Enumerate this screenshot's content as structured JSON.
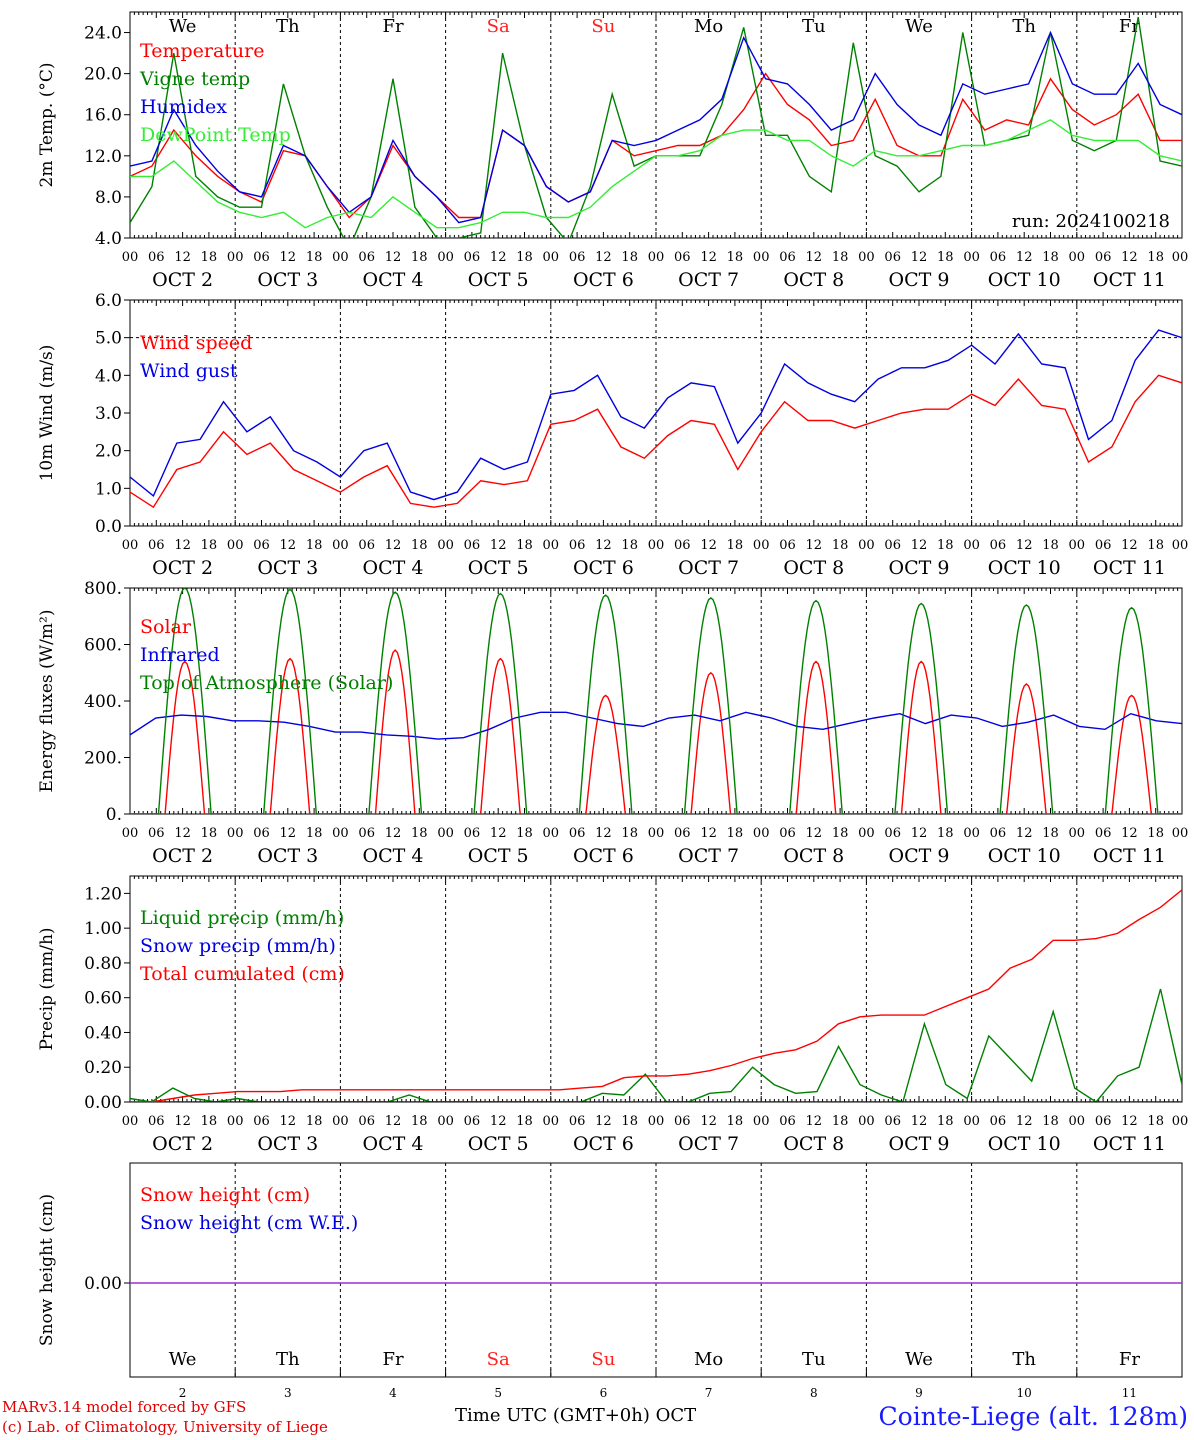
{
  "header": {
    "days": [
      "We",
      "Th",
      "Fr",
      "Sa",
      "Su",
      "Mo",
      "Tu",
      "We",
      "Th",
      "Fr"
    ],
    "weekend_days": [
      "Sa",
      "Su"
    ],
    "date_labels": [
      "OCT  2",
      "OCT  3",
      "OCT  4",
      "OCT  5",
      "OCT  6",
      "OCT  7",
      "OCT  8",
      "OCT  9",
      "OCT 10",
      "OCT 11"
    ],
    "hour_labels": [
      "00",
      "06",
      "12",
      "18"
    ],
    "final_hour_label": "00",
    "bottom_dates": [
      "2",
      "3",
      "4",
      "5",
      "6",
      "7",
      "8",
      "9",
      "10",
      "11"
    ],
    "weekend_color": "#ff2020"
  },
  "footer": {
    "model_line": "MARv3.14 model forced by GFS",
    "credit_line": "(c) Lab. of Climatology, University of Liege",
    "axis_title": "Time UTC (GMT+0h) OCT",
    "station": "Cointe-Liege (alt. 128m)"
  },
  "chart_data": [
    {
      "type": "line",
      "ylabel": "2m Temp. (°C)",
      "ylim": [
        4,
        26
      ],
      "yticks": [
        "4.0",
        "8.0",
        "12.0",
        "16.0",
        "20.0",
        "24.0"
      ],
      "run_label": "run: 2024100218",
      "x": "hours since Oct 2 00 UTC, step 6h (0..240)",
      "series": [
        {
          "name": "Temperature",
          "color": "#ff0000",
          "values": [
            10,
            11,
            14.5,
            12,
            10,
            8.5,
            7.5,
            12.5,
            12,
            9,
            6,
            8,
            13,
            10,
            8,
            6,
            6,
            14.5,
            13,
            9,
            7.5,
            8.5,
            13.5,
            12,
            12.5,
            13,
            13,
            14,
            16.5,
            20,
            17,
            15.5,
            13,
            13.5,
            17.5,
            13,
            12,
            12,
            17.5,
            14.5,
            15.5,
            15,
            19.5,
            16.5,
            15,
            16,
            18,
            13.5,
            13.5
          ]
        },
        {
          "name": "Vigne temp",
          "color": "#008000",
          "values": [
            5.5,
            9,
            22,
            10,
            8,
            7,
            7,
            19,
            12,
            7,
            3,
            8,
            19.5,
            7,
            4,
            4,
            4.5,
            22,
            13,
            6,
            3.5,
            9,
            18,
            11,
            12,
            12,
            12,
            17,
            24.5,
            14,
            14,
            10,
            8.5,
            23,
            12,
            11,
            8.5,
            10,
            24,
            13,
            13.5,
            14,
            24,
            13.5,
            12.5,
            13.5,
            25.5,
            11.5,
            11
          ]
        },
        {
          "name": "Humidex",
          "color": "#0000e0",
          "values": [
            11,
            11.5,
            16.5,
            13,
            10.5,
            8.5,
            8,
            13,
            12,
            9,
            6.5,
            8,
            13.5,
            10,
            8,
            5.5,
            6,
            14.5,
            13,
            9,
            7.5,
            8.5,
            13.5,
            13,
            13.5,
            14.5,
            15.5,
            17.5,
            23.5,
            19.5,
            19,
            17,
            14.5,
            15.5,
            20,
            17,
            15,
            14,
            19,
            18,
            18.5,
            19,
            24,
            19,
            18,
            18,
            21,
            17,
            16
          ]
        },
        {
          "name": "DewPoint Temp",
          "color": "#33ee33",
          "values": [
            10,
            10,
            11.5,
            9.5,
            7.5,
            6.5,
            6,
            6.5,
            5,
            6,
            6.5,
            6,
            8,
            6.5,
            5,
            5,
            5.5,
            6.5,
            6.5,
            6,
            6,
            7,
            9,
            10.5,
            12,
            12,
            12.5,
            14,
            14.5,
            14.5,
            13.5,
            13.5,
            12,
            11,
            12.5,
            12,
            12,
            12.5,
            13,
            13,
            13.5,
            14.5,
            15.5,
            14,
            13.5,
            13.5,
            13.5,
            12,
            11.5
          ]
        }
      ]
    },
    {
      "type": "line",
      "ylabel": "10m Wind (m/s)",
      "ylim": [
        0,
        6
      ],
      "yticks": [
        "0.0",
        "1.0",
        "2.0",
        "3.0",
        "4.0",
        "5.0",
        "6.0"
      ],
      "reference_line": 5,
      "series": [
        {
          "name": "Wind speed",
          "color": "#ff0000",
          "values": [
            0.9,
            0.5,
            1.5,
            1.7,
            2.5,
            1.9,
            2.2,
            1.5,
            1.2,
            0.9,
            1.3,
            1.6,
            0.6,
            0.5,
            0.6,
            1.2,
            1.1,
            1.2,
            2.7,
            2.8,
            3.1,
            2.1,
            1.8,
            2.4,
            2.8,
            2.7,
            1.5,
            2.5,
            3.3,
            2.8,
            2.8,
            2.6,
            2.8,
            3.0,
            3.1,
            3.1,
            3.5,
            3.2,
            3.9,
            3.2,
            3.1,
            1.7,
            2.1,
            3.3,
            4.0,
            3.8
          ]
        },
        {
          "name": "Wind gust",
          "color": "#0000e0",
          "values": [
            1.3,
            0.8,
            2.2,
            2.3,
            3.3,
            2.5,
            2.9,
            2.0,
            1.7,
            1.3,
            2.0,
            2.2,
            0.9,
            0.7,
            0.9,
            1.8,
            1.5,
            1.7,
            3.5,
            3.6,
            4.0,
            2.9,
            2.6,
            3.4,
            3.8,
            3.7,
            2.2,
            3.0,
            4.3,
            3.8,
            3.5,
            3.3,
            3.9,
            4.2,
            4.2,
            4.4,
            4.8,
            4.3,
            5.1,
            4.3,
            4.2,
            2.3,
            2.8,
            4.4,
            5.2,
            5.0
          ]
        }
      ]
    },
    {
      "type": "line",
      "ylabel": "Energy fluxes (W/m²)",
      "ylim": [
        0,
        800
      ],
      "yticks": [
        "0.",
        "200.",
        "400.",
        "600.",
        "800."
      ],
      "series": [
        {
          "name": "Solar",
          "color": "#ff0000",
          "daily_peak": [
            540,
            550,
            580,
            550,
            420,
            500,
            540,
            540,
            460,
            420
          ]
        },
        {
          "name": "Infrared",
          "color": "#0000e0",
          "values": [
            280,
            340,
            350,
            345,
            330,
            330,
            325,
            310,
            290,
            290,
            280,
            275,
            265,
            270,
            300,
            340,
            360,
            360,
            340,
            320,
            310,
            340,
            350,
            330,
            360,
            340,
            310,
            300,
            320,
            340,
            355,
            320,
            350,
            340,
            310,
            325,
            350,
            310,
            300,
            355,
            330,
            320
          ]
        },
        {
          "name": "Top of Atmosphere (Solar)",
          "color": "#008000",
          "daily_peak": [
            800,
            795,
            785,
            780,
            775,
            765,
            755,
            745,
            740,
            730
          ]
        }
      ]
    },
    {
      "type": "line",
      "ylabel": "Precip (mm/h)",
      "ylim": [
        0,
        1.3
      ],
      "yticks": [
        "0.00",
        "0.20",
        "0.40",
        "0.60",
        "0.80",
        "1.00",
        "1.20"
      ],
      "series": [
        {
          "name": "Liquid precip (mm/h)",
          "color": "#008000",
          "values": [
            0.02,
            0,
            0.08,
            0.02,
            0,
            0.02,
            0,
            0,
            0,
            0,
            0,
            0,
            0,
            0.04,
            0,
            0,
            0,
            0,
            0,
            0,
            0,
            0,
            0.05,
            0.04,
            0.16,
            0,
            0,
            0.05,
            0.06,
            0.2,
            0.1,
            0.05,
            0.06,
            0.32,
            0.1,
            0.04,
            0,
            0.45,
            0.1,
            0.02,
            0.38,
            0.25,
            0.12,
            0.52,
            0.08,
            0,
            0.15,
            0.2,
            0.65,
            0.1
          ]
        },
        {
          "name": "Snow precip (mm/h)",
          "color": "#0000e0",
          "values": [
            0,
            0,
            0,
            0,
            0,
            0,
            0,
            0,
            0,
            0,
            0,
            0,
            0,
            0,
            0,
            0,
            0,
            0,
            0,
            0,
            0,
            0,
            0,
            0,
            0,
            0,
            0,
            0,
            0,
            0,
            0,
            0,
            0,
            0,
            0,
            0,
            0,
            0,
            0,
            0,
            0,
            0,
            0,
            0,
            0,
            0,
            0,
            0,
            0,
            0
          ]
        },
        {
          "name": "Total cumulated (cm)",
          "color": "#ff0000",
          "values": [
            0,
            0,
            0.02,
            0.04,
            0.05,
            0.06,
            0.06,
            0.06,
            0.07,
            0.07,
            0.07,
            0.07,
            0.07,
            0.07,
            0.07,
            0.07,
            0.07,
            0.07,
            0.07,
            0.07,
            0.07,
            0.08,
            0.09,
            0.14,
            0.15,
            0.15,
            0.16,
            0.18,
            0.21,
            0.25,
            0.28,
            0.3,
            0.35,
            0.45,
            0.49,
            0.5,
            0.5,
            0.5,
            0.55,
            0.6,
            0.65,
            0.77,
            0.82,
            0.93,
            0.93,
            0.94,
            0.97,
            1.05,
            1.12,
            1.22
          ]
        }
      ]
    },
    {
      "type": "line",
      "ylabel": "Snow height (cm)",
      "yticks": [
        "0.00"
      ],
      "series": [
        {
          "name": "Snow height (cm)",
          "color": "#ff0000",
          "values": [
            0,
            0
          ]
        },
        {
          "name": "Snow height (cm W.E.)",
          "color": "#0000e0",
          "values": [
            0,
            0
          ]
        }
      ]
    }
  ]
}
